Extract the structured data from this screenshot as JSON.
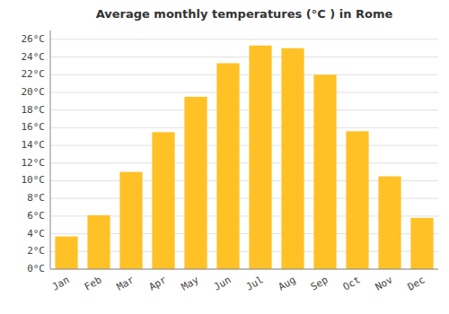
{
  "chart_data": {
    "type": "bar",
    "title": "Average monthly temperatures (°C ) in Rome",
    "categories": [
      "Jan",
      "Feb",
      "Mar",
      "Apr",
      "May",
      "Jun",
      "Jul",
      "Aug",
      "Sep",
      "Oct",
      "Nov",
      "Dec"
    ],
    "values": [
      3.7,
      6.1,
      11.0,
      15.5,
      19.5,
      23.3,
      25.3,
      25.0,
      22.0,
      15.6,
      10.5,
      5.8
    ],
    "color": "#FFC125",
    "ylim": [
      0,
      27
    ],
    "yticks": [
      {
        "value": 0,
        "label": "0°C"
      },
      {
        "value": 2,
        "label": "2°C"
      },
      {
        "value": 4,
        "label": "4°C"
      },
      {
        "value": 6,
        "label": "6°C"
      },
      {
        "value": 8,
        "label": "8°C"
      },
      {
        "value": 10,
        "label": "10°C"
      },
      {
        "value": 12,
        "label": "12°C"
      },
      {
        "value": 14,
        "label": "14°C"
      },
      {
        "value": 16,
        "label": "16°C"
      },
      {
        "value": 18,
        "label": "18°C"
      },
      {
        "value": 20,
        "label": "20°C"
      },
      {
        "value": 22,
        "label": "22°C"
      },
      {
        "value": 24,
        "label": "24°C"
      },
      {
        "value": 26,
        "label": "26°C"
      }
    ],
    "grid": true
  }
}
